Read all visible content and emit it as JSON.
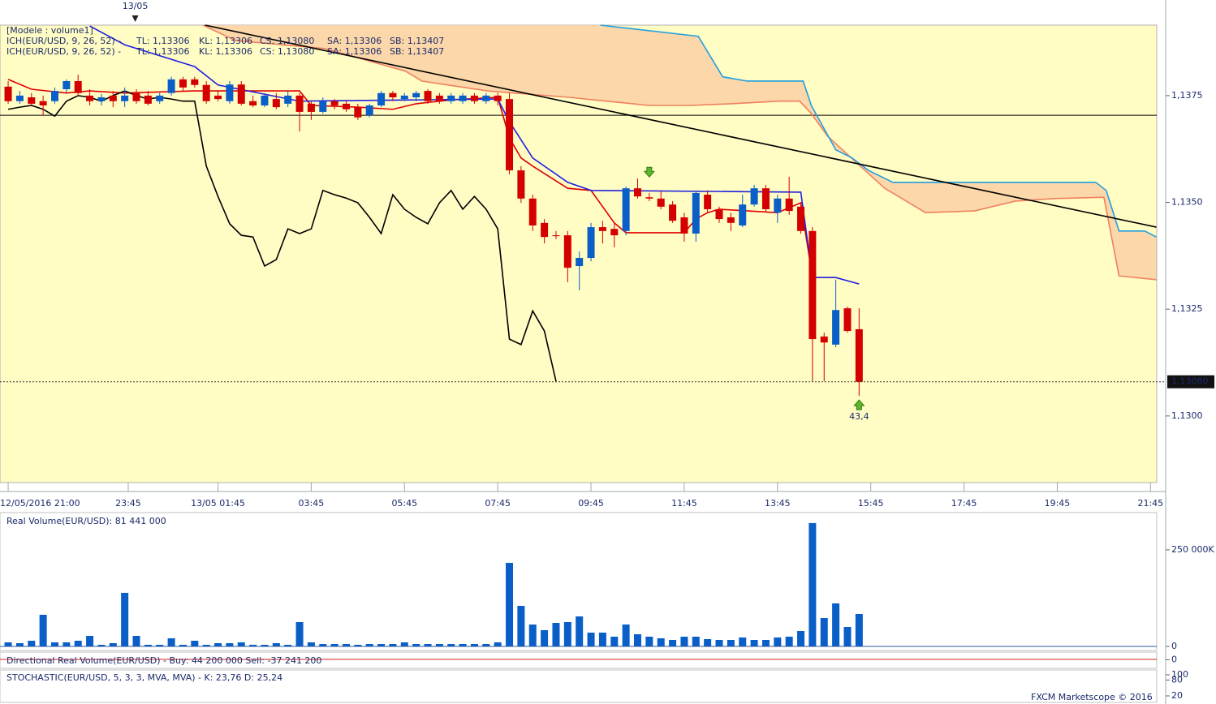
{
  "chart_data": [
    {
      "type": "candlestick",
      "header": "[Modele : volume1]",
      "indicator": "ICH(EUR/USD, 9, 26, 52) -",
      "xlim": [
        -0.7,
        99.3
      ],
      "xticks": [
        {
          "value": 0,
          "label": "12/05/2016 21:00"
        },
        {
          "value": 10.3,
          "label": "23:45"
        },
        {
          "value": 18,
          "label": "13/05 01:45"
        },
        {
          "value": 26,
          "label": "03:45"
        },
        {
          "value": 34,
          "label": "05:45"
        },
        {
          "value": 42,
          "label": "07:45"
        },
        {
          "value": 50,
          "label": "09:45"
        },
        {
          "value": 58,
          "label": "11:45"
        },
        {
          "value": 66,
          "label": "13:45"
        },
        {
          "value": 74,
          "label": "15:45"
        },
        {
          "value": 82,
          "label": "17:45"
        },
        {
          "value": 90,
          "label": "19:45"
        },
        {
          "value": 98,
          "label": "21:45"
        }
      ],
      "day_marker": {
        "label": "13/05",
        "x": 10.9
      },
      "ylim": [
        1.12844,
        1.13915
      ],
      "yticks": [
        {
          "value": 1.1375,
          "label": "1,1375"
        },
        {
          "value": 1.135,
          "label": "1,1350"
        },
        {
          "value": 1.1325,
          "label": "1,1325"
        },
        {
          "value": 1.13,
          "label": "1,1300"
        }
      ],
      "up_color": "#0a5ec8",
      "down_color": "#d40000",
      "open": [
        1.13771,
        1.13737,
        1.13746,
        1.13737,
        1.13737,
        1.13765,
        1.13784,
        1.1375,
        1.13737,
        1.1375,
        1.13737,
        1.13756,
        1.1375,
        1.13737,
        1.13756,
        1.13788,
        1.13788,
        1.13775,
        1.1375,
        1.13737,
        1.13776,
        1.13737,
        1.13727,
        1.13742,
        1.13731,
        1.1375,
        1.13731,
        1.13712,
        1.13737,
        1.13731,
        1.13723,
        1.13704,
        1.13727,
        1.13756,
        1.13742,
        1.13746,
        1.13761,
        1.1375,
        1.13737,
        1.13737,
        1.1375,
        1.13737,
        1.1375,
        1.13742,
        1.13575,
        1.13509,
        1.13452,
        1.13423,
        1.13423,
        1.13351,
        1.1337,
        1.13442,
        1.13438,
        1.13433,
        1.13533,
        1.13512,
        1.13509,
        1.13495,
        1.13465,
        1.13427,
        1.13518,
        1.13484,
        1.13465,
        1.13446,
        1.13495,
        1.13533,
        1.13476,
        1.13509,
        1.1349,
        1.13433,
        1.13186,
        1.13167,
        1.13252,
        1.13203
      ],
      "high": [
        1.13784,
        1.13761,
        1.13756,
        1.1375,
        1.13769,
        1.13788,
        1.13799,
        1.13765,
        1.13754,
        1.13761,
        1.13769,
        1.13765,
        1.13761,
        1.13756,
        1.13794,
        1.13794,
        1.13794,
        1.13784,
        1.13761,
        1.13784,
        1.13784,
        1.1375,
        1.13756,
        1.13756,
        1.13761,
        1.13756,
        1.13737,
        1.13746,
        1.13742,
        1.13737,
        1.13731,
        1.13731,
        1.13761,
        1.13761,
        1.13756,
        1.13761,
        1.13765,
        1.13756,
        1.13756,
        1.13756,
        1.13756,
        1.13756,
        1.13756,
        1.13756,
        1.13585,
        1.13518,
        1.13461,
        1.13433,
        1.13433,
        1.13385,
        1.13452,
        1.13457,
        1.13452,
        1.13537,
        1.13556,
        1.13522,
        1.13528,
        1.13503,
        1.13476,
        1.13528,
        1.13528,
        1.1349,
        1.13476,
        1.13518,
        1.13541,
        1.13541,
        1.13518,
        1.1356,
        1.13499,
        1.13442,
        1.13195,
        1.13319,
        1.13256,
        1.13252
      ],
      "low": [
        1.13731,
        1.13731,
        1.13727,
        1.13704,
        1.13731,
        1.13757,
        1.1375,
        1.13727,
        1.13727,
        1.13723,
        1.13723,
        1.13731,
        1.13727,
        1.13731,
        1.1375,
        1.13761,
        1.13769,
        1.13731,
        1.13737,
        1.13731,
        1.13727,
        1.13723,
        1.13723,
        1.13718,
        1.13723,
        1.13666,
        1.13693,
        1.13708,
        1.13718,
        1.13712,
        1.13693,
        1.13699,
        1.13723,
        1.13737,
        1.13737,
        1.13737,
        1.13731,
        1.13731,
        1.13731,
        1.13731,
        1.13731,
        1.13731,
        1.13727,
        1.13566,
        1.13499,
        1.13433,
        1.13404,
        1.13414,
        1.13313,
        1.13294,
        1.13362,
        1.13404,
        1.13395,
        1.13423,
        1.13509,
        1.13503,
        1.13484,
        1.13452,
        1.13408,
        1.13408,
        1.13476,
        1.13452,
        1.13433,
        1.13442,
        1.1349,
        1.13476,
        1.13452,
        1.13471,
        1.13427,
        1.13081,
        1.13081,
        1.13161,
        1.13195,
        1.13047
      ],
      "close": [
        1.13737,
        1.1375,
        1.13731,
        1.13727,
        1.13761,
        1.13784,
        1.13756,
        1.13737,
        1.13746,
        1.13737,
        1.1375,
        1.13737,
        1.13731,
        1.1375,
        1.13788,
        1.13769,
        1.13775,
        1.13737,
        1.13742,
        1.13776,
        1.13731,
        1.13727,
        1.1375,
        1.13723,
        1.1375,
        1.13712,
        1.13712,
        1.13737,
        1.13727,
        1.13718,
        1.13699,
        1.13727,
        1.13756,
        1.13746,
        1.1375,
        1.13756,
        1.13737,
        1.13737,
        1.1375,
        1.1375,
        1.13737,
        1.1375,
        1.13737,
        1.13575,
        1.13509,
        1.13446,
        1.13419,
        1.13421,
        1.13347,
        1.1337,
        1.13442,
        1.13433,
        1.13423,
        1.13533,
        1.13514,
        1.13509,
        1.1349,
        1.13457,
        1.13427,
        1.13522,
        1.13484,
        1.13461,
        1.13452,
        1.13495,
        1.13533,
        1.13484,
        1.13509,
        1.1348,
        1.13433,
        1.1318,
        1.13172,
        1.13248,
        1.13199,
        1.1308
      ],
      "series": [
        {
          "name": "TL: 1,13306",
          "color": "#e00000",
          "x": [
            0,
            2,
            5,
            7,
            10,
            16,
            20,
            25,
            26,
            30,
            33,
            35,
            38,
            42,
            43,
            44,
            45,
            48,
            50,
            52,
            53,
            58,
            59,
            60,
            61,
            66,
            68,
            69
          ],
          "values": [
            1.13788,
            1.13765,
            1.13756,
            1.13761,
            1.13756,
            1.13761,
            1.13761,
            1.13761,
            1.13727,
            1.13723,
            1.13718,
            1.13731,
            1.1374,
            1.13746,
            1.13651,
            1.13604,
            1.13585,
            1.13533,
            1.13528,
            1.13452,
            1.13429,
            1.13429,
            1.13461,
            1.13476,
            1.13484,
            1.13476,
            1.13499,
            1.13324
          ]
        },
        {
          "name": "KL: 1,13306",
          "color": "#2020e0",
          "x": [
            7,
            10,
            16,
            18,
            25,
            42,
            43,
            45,
            48,
            50,
            68,
            69,
            71,
            73
          ],
          "values": [
            1.13913,
            1.13869,
            1.13818,
            1.13775,
            1.13737,
            1.13742,
            1.13689,
            1.13604,
            1.13547,
            1.13528,
            1.13524,
            1.13324,
            1.13324,
            1.13309
          ]
        },
        {
          "name": "CS: 1,13080",
          "color": "#000000",
          "x": [
            0,
            1,
            2,
            3,
            4,
            5,
            6,
            7,
            8,
            9,
            10,
            11,
            12,
            13,
            14,
            15,
            16,
            17,
            18,
            19,
            20,
            21,
            22,
            23,
            24,
            25,
            26,
            27,
            28,
            29,
            30,
            31,
            32,
            33,
            34,
            35,
            36,
            37,
            38,
            39,
            40,
            41,
            42,
            43,
            44,
            45,
            46,
            47
          ],
          "values": [
            1.13718,
            1.13723,
            1.13727,
            1.13718,
            1.13702,
            1.13737,
            1.1375,
            1.13746,
            1.13737,
            1.1375,
            1.13761,
            1.1375,
            1.13742,
            1.13746,
            1.13742,
            1.13737,
            1.13737,
            1.13585,
            1.13514,
            1.1345,
            1.13423,
            1.13419,
            1.13351,
            1.13366,
            1.13438,
            1.13427,
            1.13438,
            1.13528,
            1.13518,
            1.1351,
            1.13499,
            1.13465,
            1.13427,
            1.13518,
            1.13484,
            1.13465,
            1.1345,
            1.13499,
            1.13528,
            1.13484,
            1.13514,
            1.13484,
            1.13438,
            1.1318,
            1.13167,
            1.13246,
            1.13199,
            1.13081
          ]
        },
        {
          "name": "SA: 1,13306",
          "color": "#f08060",
          "x": [
            16.7,
            19.5,
            27.2,
            34.1,
            35.5,
            41.1,
            48.1,
            55,
            58.5,
            62,
            66.2,
            67.9,
            68.9,
            70.3,
            73.1,
            75.2,
            78.7,
            82.9,
            86.4,
            89.8,
            94,
            95.3,
            98.5
          ],
          "values": [
            1.13915,
            1.13879,
            1.1386,
            1.13807,
            1.13784,
            1.13761,
            1.13746,
            1.13727,
            1.13727,
            1.13731,
            1.13737,
            1.13737,
            1.13708,
            1.13655,
            1.13585,
            1.13533,
            1.13476,
            1.1348,
            1.13503,
            1.13509,
            1.13512,
            1.13328,
            1.13319
          ]
        },
        {
          "name": "SB: 1,13407",
          "color": "#20a0e0",
          "x": [
            50.8,
            59.2,
            61.3,
            63.4,
            68.2,
            68.9,
            71,
            72.4,
            73.8,
            75.9,
            93.3,
            94.2,
            95.3,
            97.5,
            98.5
          ],
          "values": [
            1.13915,
            1.13889,
            1.13794,
            1.13784,
            1.13784,
            1.13727,
            1.13623,
            1.13604,
            1.13575,
            1.13547,
            1.13547,
            1.13528,
            1.13433,
            1.13433,
            1.13419
          ]
        }
      ],
      "cloud_color": "#fbd3a6",
      "trendline": {
        "x": [
          16.9,
          98.5
        ],
        "values": [
          1.13915,
          1.13442
        ],
        "color": "#000000"
      },
      "hline": {
        "value": 1.13704,
        "color": "#000000"
      },
      "last_price": {
        "value": 1.1308,
        "label": "1,13080"
      },
      "arrows": [
        {
          "direction": "down",
          "x": 55,
          "value": 1.13569
        },
        {
          "direction": "up",
          "x": 73,
          "value": 1.13028,
          "label": "43,4"
        }
      ],
      "footer": "FXCM Marketscope © 2016"
    },
    {
      "type": "bar",
      "title": "Real Volume(EUR/USD): 81 441 000",
      "color": "#0a5ec8",
      "ylim": [
        0,
        336000
      ],
      "yticks": [
        0,
        {
          "value": 250000,
          "label": "250 000K"
        }
      ],
      "values": [
        10500,
        8400,
        14700,
        81900,
        10500,
        10500,
        14700,
        27300,
        4200,
        8400,
        138700,
        27300,
        4200,
        4200,
        21000,
        4200,
        14700,
        4200,
        8400,
        8400,
        10500,
        4200,
        4200,
        8400,
        4200,
        63000,
        10500,
        6300,
        6300,
        6300,
        4200,
        6300,
        6300,
        6300,
        10500,
        6300,
        6300,
        6300,
        6300,
        6300,
        6300,
        6300,
        10500,
        216400,
        105000,
        56700,
        42000,
        60900,
        63000,
        77700,
        35700,
        35700,
        25200,
        56700,
        31500,
        25200,
        21000,
        16800,
        25200,
        25200,
        18900,
        16800,
        16800,
        23100,
        16800,
        16800,
        23100,
        25200,
        39900,
        319400,
        73500,
        111400,
        50400,
        84000
      ]
    },
    {
      "type": "indicator",
      "title": "Directional Real Volume(EUR/USD) -  Buy: 44 200 000  Sell: -37 241 200",
      "yticks": [
        0
      ]
    },
    {
      "type": "indicator",
      "title": "STOCHASTIC(EUR/USD, 5, 3, 3, MVA, MVA) -  K: 23,76  D: 25,24",
      "ylim": [
        0,
        100
      ],
      "yticks": [
        100,
        80,
        20
      ]
    }
  ]
}
